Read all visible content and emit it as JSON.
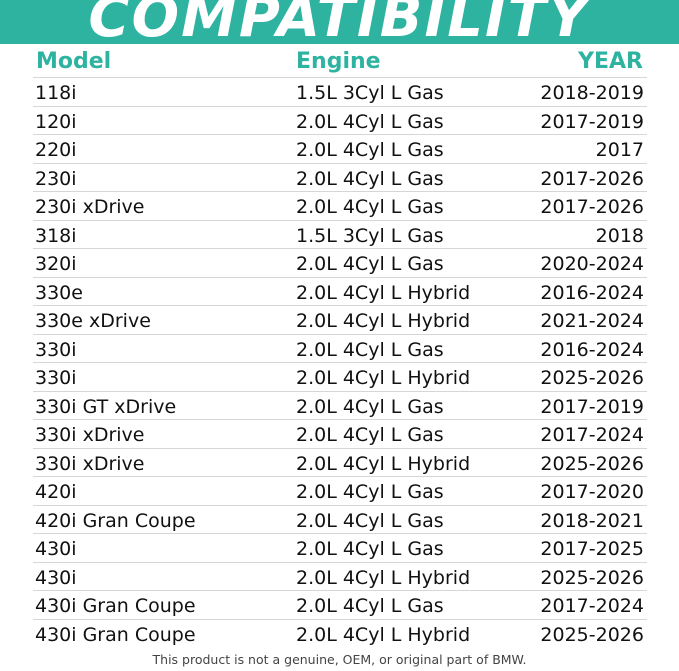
{
  "banner": {
    "title": "COMPATIBILITY",
    "color": "#2fb3a1"
  },
  "table": {
    "headers": {
      "model": "Model",
      "engine": "Engine",
      "year": "YEAR"
    },
    "rows": [
      {
        "model": "118i",
        "engine": "1.5L 3Cyl L Gas",
        "year": "2018-2019"
      },
      {
        "model": "120i",
        "engine": "2.0L 4Cyl L Gas",
        "year": "2017-2019"
      },
      {
        "model": "220i",
        "engine": "2.0L 4Cyl L Gas",
        "year": "2017"
      },
      {
        "model": "230i",
        "engine": "2.0L 4Cyl L Gas",
        "year": "2017-2026"
      },
      {
        "model": "230i xDrive",
        "engine": "2.0L 4Cyl L Gas",
        "year": "2017-2026"
      },
      {
        "model": "318i",
        "engine": "1.5L 3Cyl L Gas",
        "year": "2018"
      },
      {
        "model": "320i",
        "engine": "2.0L 4Cyl L Gas",
        "year": "2020-2024"
      },
      {
        "model": "330e",
        "engine": "2.0L 4Cyl L Hybrid",
        "year": "2016-2024"
      },
      {
        "model": "330e xDrive",
        "engine": "2.0L 4Cyl L Hybrid",
        "year": "2021-2024"
      },
      {
        "model": "330i",
        "engine": "2.0L 4Cyl L Gas",
        "year": "2016-2024"
      },
      {
        "model": "330i",
        "engine": "2.0L 4Cyl L Hybrid",
        "year": "2025-2026"
      },
      {
        "model": "330i GT xDrive",
        "engine": "2.0L 4Cyl L Gas",
        "year": "2017-2019"
      },
      {
        "model": "330i xDrive",
        "engine": "2.0L 4Cyl L Gas",
        "year": "2017-2024"
      },
      {
        "model": "330i xDrive",
        "engine": "2.0L 4Cyl L Hybrid",
        "year": "2025-2026"
      },
      {
        "model": "420i",
        "engine": "2.0L 4Cyl L Gas",
        "year": "2017-2020"
      },
      {
        "model": "420i Gran Coupe",
        "engine": "2.0L 4Cyl L Gas",
        "year": "2018-2021"
      },
      {
        "model": "430i",
        "engine": "2.0L 4Cyl L Gas",
        "year": "2017-2025"
      },
      {
        "model": "430i",
        "engine": "2.0L 4Cyl L Hybrid",
        "year": "2025-2026"
      },
      {
        "model": "430i Gran Coupe",
        "engine": "2.0L 4Cyl L Gas",
        "year": "2017-2024"
      },
      {
        "model": "430i Gran Coupe",
        "engine": "2.0L 4Cyl L Hybrid",
        "year": "2025-2026"
      }
    ]
  },
  "footer": {
    "disclaimer": "This product is not a genuine, OEM, or original part of BMW."
  }
}
